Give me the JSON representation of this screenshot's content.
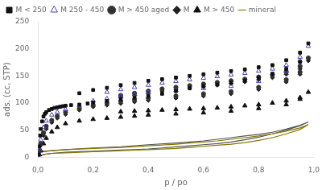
{
  "chart_data": {
    "type": "scatter",
    "x_label": "p / po",
    "y_label": "ads. (cc, STP)",
    "xlim": [
      0,
      1.0
    ],
    "ylim": [
      0,
      250
    ],
    "xticks": [
      {
        "value": 0.0,
        "label": "0,0"
      },
      {
        "value": 0.2,
        "label": "0,2"
      },
      {
        "value": 0.4,
        "label": "0,4"
      },
      {
        "value": 0.6,
        "label": "0,6"
      },
      {
        "value": 0.8,
        "label": "0,8"
      },
      {
        "value": 1.0,
        "label": "1,0"
      }
    ],
    "yticks": [
      0,
      50,
      100,
      150,
      200,
      250
    ],
    "grid": false,
    "legend": "upper left",
    "series": [
      {
        "name": "M < 250",
        "type": "scatter",
        "color": "#111111",
        "marker": "square",
        "x": [
          0.002,
          0.005,
          0.008,
          0.01,
          0.015,
          0.02,
          0.025,
          0.03,
          0.04,
          0.05,
          0.06,
          0.07,
          0.08,
          0.09,
          0.1,
          0.12,
          0.15,
          0.18,
          0.2,
          0.25,
          0.3,
          0.35,
          0.4,
          0.45,
          0.5,
          0.55,
          0.6,
          0.65,
          0.7,
          0.75,
          0.8,
          0.85,
          0.9,
          0.95,
          0.98,
          0.95,
          0.9,
          0.85,
          0.8,
          0.75,
          0.7,
          0.65,
          0.6,
          0.55,
          0.5,
          0.45,
          0.4,
          0.35,
          0.3,
          0.25,
          0.2,
          0.15
        ],
        "values": [
          5,
          20,
          40,
          52,
          66,
          75,
          80,
          83,
          87,
          89,
          91,
          92,
          93,
          94,
          95,
          96,
          97,
          99,
          101,
          104,
          107,
          110,
          113,
          117,
          122,
          127,
          131,
          134,
          137,
          141,
          146,
          154,
          163,
          176,
          210,
          193,
          179,
          170,
          166,
          162,
          159,
          156,
          153,
          150,
          147,
          144,
          141,
          137,
          133,
          128,
          124,
          118
        ]
      },
      {
        "name": "M 250 - 450",
        "type": "scatter",
        "color": "#4444bb",
        "marker": "open_triangle",
        "x": [
          0.002,
          0.005,
          0.01,
          0.02,
          0.03,
          0.05,
          0.07,
          0.1,
          0.15,
          0.2,
          0.25,
          0.3,
          0.35,
          0.4,
          0.5,
          0.6,
          0.7,
          0.8,
          0.9,
          0.95,
          0.98,
          0.95,
          0.9,
          0.85,
          0.8,
          0.75,
          0.7,
          0.65,
          0.6,
          0.55,
          0.5,
          0.45,
          0.4,
          0.35,
          0.3,
          0.25
        ],
        "values": [
          4,
          15,
          32,
          55,
          67,
          78,
          83,
          88,
          95,
          104,
          108,
          112,
          116,
          119,
          123,
          127,
          131,
          140,
          158,
          178,
          205,
          185,
          170,
          163,
          159,
          155,
          152,
          149,
          146,
          143,
          140,
          137,
          133,
          129,
          125,
          120
        ]
      },
      {
        "name": "M > 450 aged",
        "type": "scatter",
        "color": "#333333",
        "marker": "circle",
        "x": [
          0.005,
          0.01,
          0.02,
          0.03,
          0.05,
          0.07,
          0.1,
          0.15,
          0.2,
          0.25,
          0.3,
          0.35,
          0.4,
          0.5,
          0.6,
          0.7,
          0.8,
          0.9,
          0.95,
          0.98,
          0.95,
          0.9,
          0.85,
          0.8,
          0.75,
          0.7,
          0.65,
          0.6,
          0.55,
          0.5,
          0.45,
          0.4,
          0.35,
          0.3
        ],
        "values": [
          12,
          25,
          45,
          57,
          68,
          76,
          83,
          90,
          96,
          100,
          103,
          106,
          109,
          113,
          117,
          121,
          129,
          143,
          157,
          183,
          168,
          158,
          152,
          148,
          144,
          141,
          138,
          135,
          132,
          129,
          126,
          122,
          118,
          114
        ]
      },
      {
        "name": "M",
        "type": "scatter",
        "color": "#222222",
        "marker": "diamond",
        "x": [
          0.005,
          0.01,
          0.02,
          0.03,
          0.05,
          0.07,
          0.1,
          0.15,
          0.2,
          0.25,
          0.3,
          0.35,
          0.4,
          0.5,
          0.6,
          0.7,
          0.8,
          0.9,
          0.95,
          0.98,
          0.95,
          0.9,
          0.85,
          0.8,
          0.75,
          0.7,
          0.65,
          0.6,
          0.55,
          0.5,
          0.45,
          0.4,
          0.35,
          0.3
        ],
        "values": [
          10,
          22,
          40,
          52,
          64,
          72,
          79,
          87,
          93,
          96,
          99,
          102,
          105,
          109,
          113,
          117,
          125,
          139,
          153,
          178,
          163,
          153,
          147,
          143,
          139,
          136,
          133,
          130,
          128,
          125,
          122,
          118,
          114,
          110
        ]
      },
      {
        "name": "M > 450",
        "type": "scatter",
        "color": "#111111",
        "marker": "triangle",
        "x": [
          0.005,
          0.01,
          0.02,
          0.03,
          0.05,
          0.07,
          0.1,
          0.15,
          0.2,
          0.25,
          0.3,
          0.35,
          0.4,
          0.5,
          0.6,
          0.7,
          0.8,
          0.9,
          0.95,
          0.98,
          0.95,
          0.9,
          0.85,
          0.8,
          0.75,
          0.7,
          0.65,
          0.6,
          0.55,
          0.5,
          0.45,
          0.4,
          0.35,
          0.3
        ],
        "values": [
          5,
          12,
          25,
          35,
          47,
          55,
          62,
          67,
          70,
          72,
          74,
          76,
          78,
          80,
          82,
          85,
          90,
          97,
          107,
          120,
          110,
          104,
          100,
          97,
          95,
          93,
          91,
          90,
          89,
          88,
          87,
          86,
          85,
          84
        ]
      },
      {
        "name": "mineral",
        "type": "line",
        "color": "#887700",
        "line_style": "solid",
        "x": [
          0.0,
          0.02,
          0.05,
          0.1,
          0.15,
          0.2,
          0.25,
          0.3,
          0.35,
          0.4,
          0.45,
          0.5,
          0.55,
          0.6,
          0.65,
          0.7,
          0.75,
          0.8,
          0.85,
          0.9,
          0.95,
          0.98,
          0.98,
          0.95,
          0.9,
          0.85,
          0.8,
          0.75,
          0.7,
          0.65,
          0.6,
          0.55,
          0.5,
          0.4,
          0.3,
          0.2,
          0.1,
          0.05,
          0.02,
          0.0
        ],
        "values": [
          0,
          5,
          7,
          8,
          9,
          10,
          11,
          12,
          13,
          14,
          15,
          16,
          18,
          20,
          22,
          24,
          27,
          31,
          36,
          43,
          51,
          60,
          60,
          54,
          48,
          43,
          39,
          36,
          33,
          30,
          28,
          26,
          24,
          21,
          18,
          16,
          14,
          12,
          10,
          8
        ]
      },
      {
        "type": "line",
        "color": "#555555",
        "line_style": "solid",
        "x": [
          0.0,
          0.02,
          0.05,
          0.1,
          0.15,
          0.2,
          0.25,
          0.3,
          0.35,
          0.4,
          0.45,
          0.5,
          0.55,
          0.6,
          0.65,
          0.7,
          0.75,
          0.8,
          0.85,
          0.9,
          0.95,
          0.98,
          0.98,
          0.95,
          0.9,
          0.85,
          0.8,
          0.75,
          0.7,
          0.65,
          0.6,
          0.55,
          0.5,
          0.4,
          0.3,
          0.2,
          0.1,
          0.0
        ],
        "values": [
          0,
          5,
          7,
          9,
          10,
          11,
          12,
          13,
          14,
          15,
          17,
          19,
          21,
          23,
          25,
          28,
          32,
          37,
          43,
          50,
          58,
          65,
          65,
          59,
          52,
          46,
          42,
          39,
          36,
          33,
          30,
          28,
          26,
          23,
          19,
          17,
          14,
          10
        ]
      }
    ]
  }
}
